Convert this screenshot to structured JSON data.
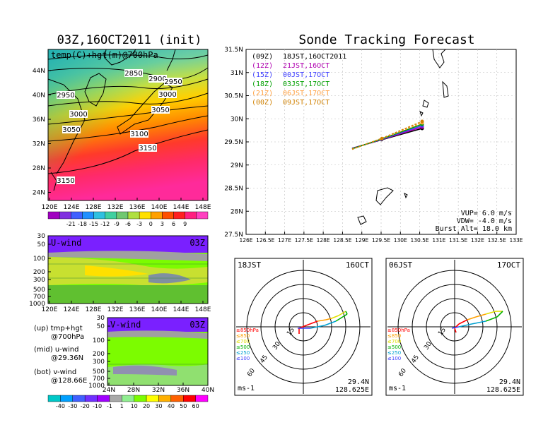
{
  "figure": {
    "left_title": "03Z,16OCT2011 (init)",
    "right_title": "Sonde Tracking Forecast"
  },
  "colors": {
    "temp_scale": [
      "#6a00a8",
      "#8a2be2",
      "#4169e1",
      "#1e90ff",
      "#00bfff",
      "#40e0d0",
      "#2e8b57",
      "#7cfc00",
      "#ffff00",
      "#ffa500",
      "#ff4500",
      "#ff0000",
      "#ff1493",
      "#ff00ff"
    ],
    "wind_scale": [
      "#00c8c8",
      "#00a0ff",
      "#4060ff",
      "#7030ff",
      "#a000ff",
      "#b0b0b0",
      "#90ee90",
      "#7cfc00",
      "#ffff00",
      "#ffb000",
      "#ff6000",
      "#ff0000",
      "#ff00ff"
    ],
    "tracks": [
      "#000000",
      "#b000b0",
      "#4040ff",
      "#00a000",
      "#ffa040",
      "#d08000"
    ]
  },
  "map_panel": {
    "label": "temp(C)+hgt(m)@700hPa",
    "lat_ticks": [
      "44N",
      "40N",
      "36N",
      "32N",
      "28N",
      "24N"
    ],
    "lon_ticks": [
      "120E",
      "124E",
      "128E",
      "132E",
      "136E",
      "140E",
      "144E",
      "148E"
    ],
    "contours": [
      "2850",
      "2900",
      "2950",
      "2950",
      "3000",
      "3000",
      "3050",
      "3050",
      "3100",
      "3150",
      "3150"
    ],
    "colorbar_labels": [
      "-21",
      "-18",
      "-15",
      "-12",
      "-9",
      "-6",
      "-3",
      "0",
      "3",
      "6",
      "9"
    ]
  },
  "u_panel": {
    "label": "U-wind",
    "time": "03Z",
    "y_ticks": [
      "30",
      "50",
      "100",
      "200",
      "300",
      "500",
      "700",
      "1000"
    ],
    "x_ticks": [
      "120E",
      "124E",
      "128E",
      "132E",
      "136E",
      "140E",
      "144E",
      "148E"
    ]
  },
  "v_panel": {
    "label": "V-wind",
    "time": "03Z",
    "y_ticks": [
      "30",
      "50",
      "100",
      "200",
      "300",
      "500",
      "700",
      "1000"
    ],
    "x_ticks": [
      "24N",
      "28N",
      "32N",
      "36N",
      "40N"
    ]
  },
  "notes": {
    "up1": "(up) tmp+hgt",
    "up2": "@700hPa",
    "mid1": "(mid) u-wind",
    "mid2": "@29.36N",
    "bot1": "(bot) v-wind",
    "bot2": "@128.66E"
  },
  "wind_colorbar_labels": [
    "-40",
    "-30",
    "-20",
    "-10",
    "-1",
    "1",
    "10",
    "20",
    "30",
    "40",
    "50",
    "60"
  ],
  "track_panel": {
    "lat_ticks": [
      "31.5N",
      "31N",
      "30.5N",
      "30N",
      "29.5N",
      "29N",
      "28.5N",
      "28N",
      "27.5N"
    ],
    "lon_ticks": [
      "126E",
      "126.5E",
      "127E",
      "127.5E",
      "128E",
      "128.5E",
      "129E",
      "129.5E",
      "130E",
      "130.5E",
      "131E",
      "131.5E",
      "132E",
      "132.5E",
      "133E"
    ],
    "legend": [
      {
        "key": "(09Z)",
        "text": "18JST,16OCT2011"
      },
      {
        "key": "(12Z)",
        "text": "21JST,16OCT"
      },
      {
        "key": "(15Z)",
        "text": "00JST,17OCT"
      },
      {
        "key": "(18Z)",
        "text": "03JST,17OCT"
      },
      {
        "key": "(21Z)",
        "text": "06JST,17OCT"
      },
      {
        "key": "(00Z)",
        "text": "09JST,17OCT"
      }
    ],
    "params": [
      "VUP= 6.0 m/s",
      "VDW= -4.0 m/s",
      "Burst Alt= 18.0 km"
    ]
  },
  "polar1": {
    "time": "18JST",
    "date": "16OCT",
    "rings": [
      "15",
      "30",
      "45",
      "60"
    ],
    "levels": [
      "≥850hPa",
      "≤850",
      "≤700",
      "≤500",
      "≤250",
      "≤100"
    ],
    "unit": "ms-1",
    "lat": "29.4N",
    "lon": "128.625E"
  },
  "polar2": {
    "time": "06JST",
    "date": "17OCT",
    "rings": [
      "15",
      "30",
      "45",
      "60"
    ],
    "levels": [
      "≥850hPa",
      "≤850",
      "≤700",
      "≤500",
      "≤250",
      "≤100"
    ],
    "unit": "ms-1",
    "lat": "29.4N",
    "lon": "128.625E"
  }
}
